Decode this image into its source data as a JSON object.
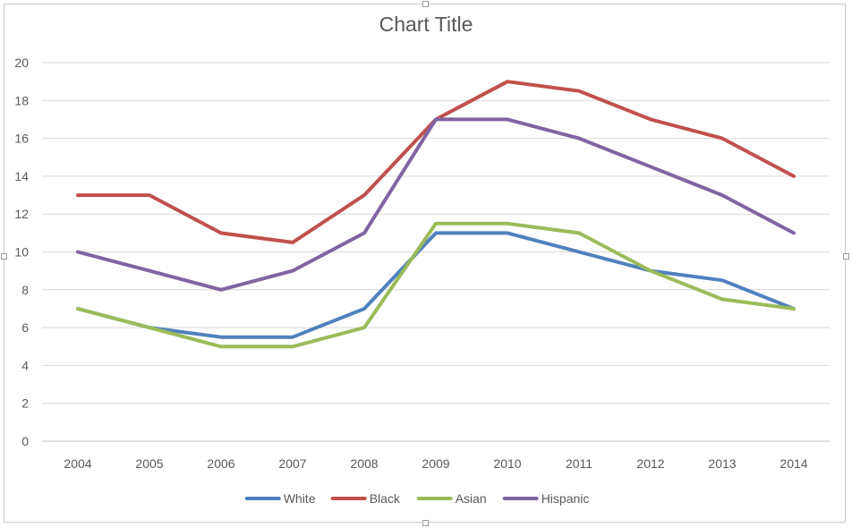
{
  "chart_data": {
    "type": "line",
    "title": "Chart Title",
    "xlabel": "",
    "ylabel": "",
    "categories": [
      "2004",
      "2005",
      "2006",
      "2007",
      "2008",
      "2009",
      "2010",
      "2011",
      "2012",
      "2013",
      "2014"
    ],
    "ylim": [
      0,
      20
    ],
    "yticks": [
      0,
      2,
      4,
      6,
      8,
      10,
      12,
      14,
      16,
      18,
      20
    ],
    "grid": true,
    "legend_position": "bottom",
    "series": [
      {
        "name": "White",
        "color": "#4f81bd",
        "values": [
          7,
          6,
          5.5,
          5.5,
          7,
          11,
          11,
          10,
          9,
          8.5,
          7
        ]
      },
      {
        "name": "Black",
        "color": "#c0504d",
        "values": [
          13,
          13,
          11,
          10.5,
          13,
          17,
          19,
          18.5,
          17,
          16,
          14
        ]
      },
      {
        "name": "Asian",
        "color": "#9bbb59",
        "values": [
          7,
          6,
          5,
          5,
          6,
          11.5,
          11.5,
          11,
          9,
          7.5,
          7
        ]
      },
      {
        "name": "Hispanic",
        "color": "#8064a2",
        "values": [
          10,
          9,
          8,
          9,
          11,
          17,
          17,
          16,
          14.5,
          13,
          11
        ]
      }
    ]
  }
}
